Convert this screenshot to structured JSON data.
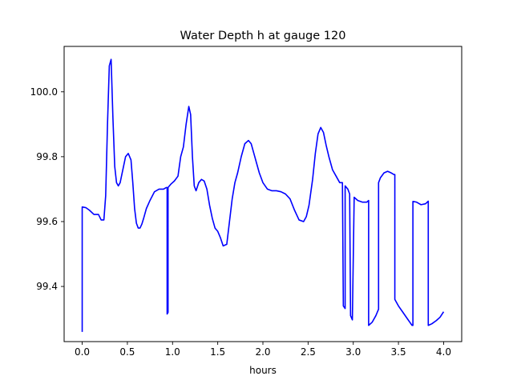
{
  "chart_data": {
    "type": "line",
    "title": "Water Depth h at gauge 120",
    "xlabel": "hours",
    "ylabel": "",
    "xlim": [
      -0.2,
      4.2
    ],
    "ylim": [
      99.23,
      100.14
    ],
    "grid": false,
    "legend": "none",
    "xticks": [
      {
        "value": 0.0,
        "label": "0.0"
      },
      {
        "value": 0.5,
        "label": "0.5"
      },
      {
        "value": 1.0,
        "label": "1.0"
      },
      {
        "value": 1.5,
        "label": "1.5"
      },
      {
        "value": 2.0,
        "label": "2.0"
      },
      {
        "value": 2.5,
        "label": "2.5"
      },
      {
        "value": 3.0,
        "label": "3.0"
      },
      {
        "value": 3.5,
        "label": "3.5"
      },
      {
        "value": 4.0,
        "label": "4.0"
      }
    ],
    "yticks": [
      {
        "value": 99.4,
        "label": "99.4"
      },
      {
        "value": 99.6,
        "label": "99.6"
      },
      {
        "value": 99.8,
        "label": "99.8"
      },
      {
        "value": 100.0,
        "label": "100.0"
      }
    ],
    "series": [
      {
        "color": "#0000ff",
        "x": [
          0.0,
          0.0,
          0.04,
          0.08,
          0.13,
          0.18,
          0.21,
          0.24,
          0.26,
          0.28,
          0.3,
          0.32,
          0.34,
          0.36,
          0.38,
          0.4,
          0.42,
          0.45,
          0.48,
          0.51,
          0.54,
          0.56,
          0.58,
          0.6,
          0.62,
          0.64,
          0.66,
          0.68,
          0.71,
          0.75,
          0.8,
          0.85,
          0.9,
          0.93,
          0.94,
          0.94,
          0.95,
          0.95,
          0.98,
          1.02,
          1.06,
          1.09,
          1.12,
          1.15,
          1.18,
          1.2,
          1.22,
          1.24,
          1.26,
          1.29,
          1.32,
          1.35,
          1.38,
          1.41,
          1.44,
          1.47,
          1.5,
          1.53,
          1.56,
          1.6,
          1.63,
          1.66,
          1.69,
          1.72,
          1.76,
          1.8,
          1.84,
          1.87,
          1.9,
          1.93,
          1.96,
          2.0,
          2.05,
          2.1,
          2.15,
          2.2,
          2.25,
          2.3,
          2.35,
          2.4,
          2.45,
          2.48,
          2.51,
          2.55,
          2.58,
          2.61,
          2.64,
          2.67,
          2.7,
          2.73,
          2.77,
          2.81,
          2.85,
          2.88,
          2.89,
          2.89,
          2.91,
          2.91,
          2.94,
          2.96,
          2.97,
          2.97,
          2.99,
          3.01,
          3.01,
          3.05,
          3.1,
          3.15,
          3.17,
          3.17,
          3.21,
          3.25,
          3.28,
          3.28,
          3.3,
          3.34,
          3.38,
          3.42,
          3.45,
          3.46,
          3.46,
          3.5,
          3.55,
          3.6,
          3.65,
          3.66,
          3.66,
          3.7,
          3.75,
          3.8,
          3.83,
          3.83,
          3.87,
          3.92,
          3.96,
          4.0
        ],
        "y": [
          99.26,
          99.645,
          99.643,
          99.635,
          99.622,
          99.622,
          99.605,
          99.605,
          99.68,
          99.9,
          100.08,
          100.1,
          99.92,
          99.77,
          99.72,
          99.71,
          99.72,
          99.76,
          99.8,
          99.81,
          99.79,
          99.72,
          99.64,
          99.595,
          99.58,
          99.58,
          99.592,
          99.61,
          99.64,
          99.665,
          99.692,
          99.7,
          99.7,
          99.705,
          99.705,
          99.315,
          99.32,
          99.705,
          99.715,
          99.725,
          99.74,
          99.8,
          99.83,
          99.9,
          99.955,
          99.93,
          99.8,
          99.71,
          99.695,
          99.72,
          99.73,
          99.725,
          99.7,
          99.65,
          99.61,
          99.58,
          99.57,
          99.55,
          99.525,
          99.53,
          99.6,
          99.67,
          99.72,
          99.75,
          99.8,
          99.84,
          99.85,
          99.84,
          99.81,
          99.78,
          99.75,
          99.72,
          99.7,
          99.695,
          99.695,
          99.692,
          99.685,
          99.67,
          99.635,
          99.605,
          99.6,
          99.615,
          99.65,
          99.73,
          99.81,
          99.87,
          99.89,
          99.875,
          99.835,
          99.8,
          99.76,
          99.74,
          99.72,
          99.72,
          99.34,
          99.34,
          99.332,
          99.71,
          99.7,
          99.685,
          99.31,
          99.31,
          99.297,
          99.675,
          99.675,
          99.665,
          99.66,
          99.66,
          99.665,
          99.28,
          99.29,
          99.31,
          99.33,
          99.72,
          99.735,
          99.75,
          99.755,
          99.75,
          99.745,
          99.745,
          99.36,
          99.34,
          99.32,
          99.3,
          99.28,
          99.28,
          99.662,
          99.66,
          99.652,
          99.655,
          99.663,
          99.28,
          99.285,
          99.295,
          99.305,
          99.322
        ]
      }
    ]
  }
}
